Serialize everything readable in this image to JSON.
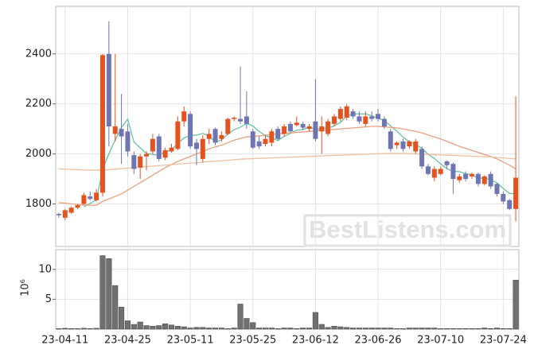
{
  "chart_data": [
    {
      "type": "candlestick",
      "categories": [
        null,
        "23-04-11",
        null,
        null,
        null,
        null,
        null,
        null,
        null,
        null,
        null,
        "23-04-25",
        null,
        null,
        null,
        null,
        null,
        null,
        null,
        null,
        null,
        "23-05-11",
        null,
        null,
        null,
        null,
        null,
        null,
        null,
        null,
        null,
        "23-05-25",
        null,
        null,
        null,
        null,
        null,
        null,
        null,
        null,
        null,
        "23-06-12",
        null,
        null,
        null,
        null,
        null,
        null,
        null,
        null,
        null,
        "23-06-26",
        null,
        null,
        null,
        null,
        null,
        null,
        null,
        null,
        null,
        "23-07-10",
        null,
        null,
        null,
        null,
        null,
        null,
        null,
        null,
        null,
        "23-07-24",
        null,
        null
      ],
      "open": [
        1760,
        1745,
        1765,
        1785,
        1800,
        1830,
        1815,
        1845,
        2400,
        2080,
        2100,
        2090,
        1995,
        1945,
        1990,
        2010,
        2070,
        1985,
        2010,
        2020,
        2130,
        2160,
        2045,
        1980,
        2060,
        2100,
        2060,
        2080,
        2140,
        2140,
        2150,
        2090,
        2050,
        2040,
        2045,
        2100,
        2080,
        2120,
        2115,
        2120,
        2100,
        2130,
        2090,
        2080,
        2120,
        2140,
        2145,
        2170,
        2150,
        2120,
        2150,
        2160,
        2140,
        2090,
        2035,
        2050,
        2030,
        2010,
        2020,
        1950,
        1905,
        1920,
        1970,
        1960,
        1895,
        1920,
        1910,
        1920,
        1880,
        1920,
        1880,
        1840,
        1815,
        1780
      ],
      "high": [
        1765,
        1780,
        1790,
        1800,
        1845,
        1850,
        1860,
        2400,
        2530,
        2400,
        2240,
        2120,
        2010,
        2000,
        2010,
        2080,
        2080,
        2025,
        2040,
        2150,
        2190,
        2170,
        2060,
        2075,
        2100,
        2105,
        2090,
        2145,
        2150,
        2350,
        2250,
        2100,
        2070,
        2075,
        2100,
        2110,
        2120,
        2130,
        2150,
        2130,
        2120,
        2300,
        2150,
        2140,
        2160,
        2190,
        2200,
        2180,
        2170,
        2170,
        2170,
        2180,
        2150,
        2100,
        2050,
        2060,
        2055,
        2060,
        2030,
        1960,
        1950,
        1950,
        1975,
        1965,
        1920,
        1930,
        1925,
        1925,
        1915,
        1930,
        1885,
        1850,
        1820,
        2230
      ],
      "low": [
        1745,
        1735,
        1760,
        1780,
        1795,
        1815,
        1810,
        1830,
        2030,
        2050,
        1960,
        1990,
        1920,
        1900,
        1935,
        2000,
        1970,
        1975,
        2005,
        2015,
        2110,
        2020,
        1955,
        1965,
        2040,
        2035,
        2050,
        2075,
        2130,
        2120,
        2100,
        2020,
        2020,
        2030,
        2030,
        2055,
        2070,
        2085,
        2110,
        2095,
        2090,
        2050,
        2000,
        2070,
        2110,
        2130,
        2135,
        2140,
        2120,
        2110,
        2130,
        2130,
        2100,
        2010,
        2020,
        2010,
        2020,
        2000,
        1940,
        1915,
        1890,
        1915,
        1940,
        1840,
        1885,
        1890,
        1900,
        1870,
        1875,
        1860,
        1830,
        1800,
        1775,
        1730
      ],
      "close": [
        1755,
        1775,
        1785,
        1795,
        1835,
        1820,
        1845,
        2395,
        2110,
        2110,
        2070,
        2010,
        1940,
        1990,
        2000,
        2060,
        1980,
        2015,
        2025,
        2130,
        2170,
        2030,
        2020,
        2060,
        2080,
        2045,
        2075,
        2140,
        2145,
        2130,
        2120,
        2025,
        2030,
        2060,
        2090,
        2060,
        2110,
        2090,
        2125,
        2105,
        2110,
        2060,
        2110,
        2130,
        2150,
        2180,
        2190,
        2150,
        2130,
        2150,
        2140,
        2140,
        2110,
        2020,
        2045,
        2020,
        2050,
        2050,
        1950,
        1920,
        1940,
        1940,
        1955,
        1900,
        1910,
        1900,
        1920,
        1880,
        1910,
        1870,
        1840,
        1810,
        1780,
        1905
      ],
      "up_color": "#e4531f",
      "down_color": "#6f74b3",
      "lines": [
        {
          "color": "#66c2a5",
          "values": [
            null,
            null,
            null,
            null,
            1789,
            1802,
            1816,
            1938,
            2001,
            2056,
            2106,
            2139,
            2048,
            2024,
            2002,
            1998,
            1994,
            2009,
            2016,
            2042,
            2064,
            2074,
            2075,
            2082,
            2072,
            2047,
            2056,
            2080,
            2097,
            2107,
            2122,
            2112,
            2090,
            2073,
            2065,
            2053,
            2070,
            2082,
            2095,
            2098,
            2108,
            2098,
            2102,
            2103,
            2112,
            2126,
            2152,
            2160,
            2160,
            2160,
            2152,
            2142,
            2134,
            2112,
            2091,
            2067,
            2049,
            2037,
            2023,
            1998,
            1982,
            1960,
            1941,
            1931,
            1929,
            1921,
            1917,
            1902,
            1904,
            1896,
            1884,
            1862,
            1842,
            1841
          ]
        },
        {
          "color": "#e8a07e",
          "values": [
            1805,
            1803,
            1800,
            1798,
            1796,
            1795,
            1795,
            1810,
            1820,
            1830,
            1840,
            1855,
            1870,
            1885,
            1900,
            1915,
            1930,
            1945,
            1958,
            1970,
            1980,
            1990,
            2000,
            2010,
            2020,
            2028,
            2035,
            2045,
            2055,
            2062,
            2068,
            2070,
            2072,
            2075,
            2077,
            2080,
            2082,
            2084,
            2086,
            2088,
            2090,
            2092,
            2094,
            2096,
            2098,
            2100,
            2102,
            2104,
            2106,
            2108,
            2110,
            2110,
            2108,
            2106,
            2104,
            2100,
            2095,
            2090,
            2084,
            2076,
            2068,
            2060,
            2050,
            2040,
            2030,
            2022,
            2014,
            2006,
            1998,
            1990,
            1980,
            1968,
            1955,
            1940
          ]
        },
        {
          "color": "#efc0a0",
          "values": [
            1940,
            1939,
            1938,
            1937,
            1936,
            1935,
            1935,
            1935,
            1937,
            1939,
            1941,
            1943,
            1945,
            1947,
            1949,
            1951,
            1953,
            1955,
            1957,
            1959,
            1961,
            1963,
            1965,
            1967,
            1969,
            1971,
            1973,
            1975,
            1977,
            1979,
            1980,
            1981,
            1982,
            1983,
            1984,
            1985,
            1986,
            1987,
            1988,
            1989,
            1990,
            1991,
            1992,
            1993,
            1994,
            1995,
            1996,
            1997,
            1998,
            1999,
            2000,
            2001,
            2002,
            2002,
            2002,
            2002,
            2001,
            2000,
            1999,
            1998,
            1997,
            1996,
            1995,
            1994,
            1993,
            1992,
            1991,
            1990,
            1989,
            1988,
            1986,
            1984,
            1982,
            1980
          ]
        }
      ],
      "ylim": [
        1630,
        2590
      ],
      "yticks": [
        1800,
        2000,
        2200,
        2400
      ],
      "grid": true,
      "watermark": "BestListens.com"
    },
    {
      "type": "bar",
      "ylabel": "10⁶",
      "values": [
        0.1,
        0.15,
        0.1,
        0.1,
        0.15,
        0.1,
        0.15,
        12.3,
        11.8,
        7.3,
        3.7,
        1.4,
        0.8,
        1.2,
        0.6,
        0.5,
        0.6,
        0.9,
        0.7,
        0.5,
        0.4,
        0.2,
        0.3,
        0.3,
        0.2,
        0.2,
        0.2,
        0.1,
        0.2,
        4.2,
        1.8,
        1.1,
        0.2,
        0.2,
        0.2,
        0.1,
        0.2,
        0.2,
        0.1,
        0.2,
        0.2,
        2.8,
        0.8,
        0.3,
        0.5,
        0.4,
        0.3,
        0.2,
        0.2,
        0.2,
        0.2,
        0.2,
        0.2,
        0.2,
        0.1,
        0.1,
        0.2,
        0.2,
        0.2,
        0.2,
        0.2,
        0.1,
        0.1,
        0.1,
        0.1,
        0.1,
        0.1,
        0.1,
        0.2,
        0.1,
        0.2,
        0.1,
        0.1,
        8.2
      ],
      "color": "#707070",
      "ylim": [
        0,
        13.3
      ],
      "yticks": [
        5,
        10
      ],
      "grid": true
    }
  ]
}
